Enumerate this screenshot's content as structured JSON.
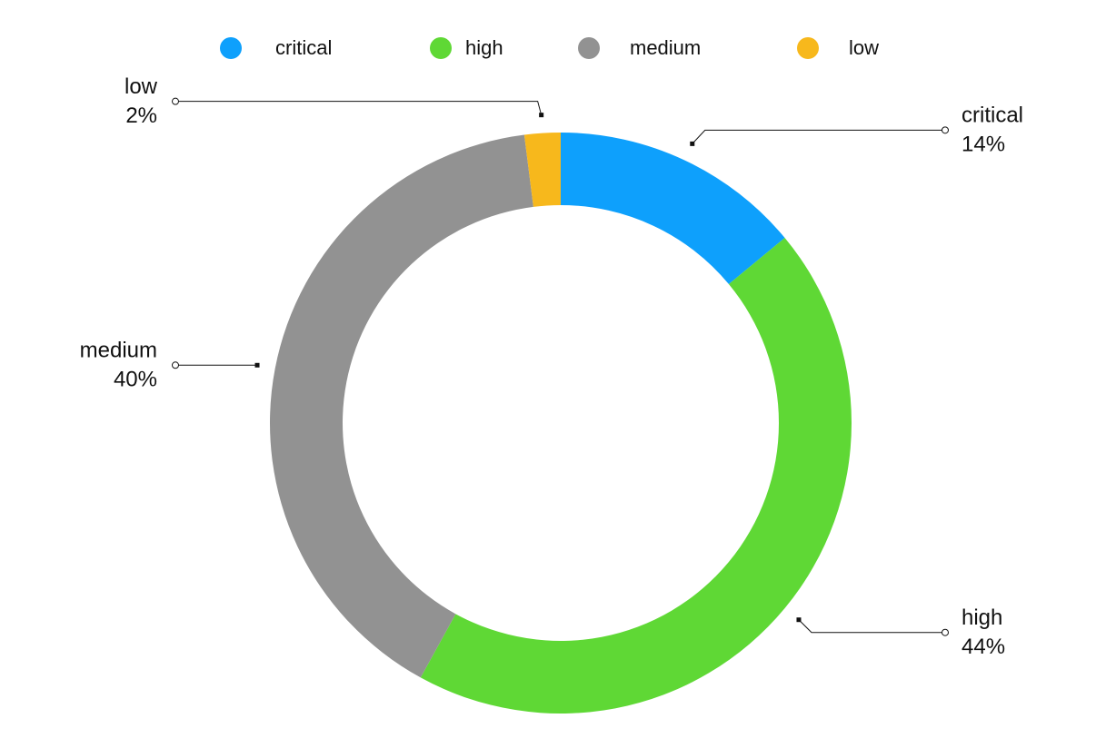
{
  "chart_data": {
    "type": "donut",
    "categories": [
      "critical",
      "high",
      "medium",
      "low"
    ],
    "values": [
      14,
      44,
      40,
      2
    ],
    "value_labels": [
      "14%",
      "44%",
      "40%",
      "2%"
    ],
    "colors": [
      "#0ea0fc",
      "#5fd835",
      "#929292",
      "#f7b81c"
    ],
    "legend": "top"
  }
}
